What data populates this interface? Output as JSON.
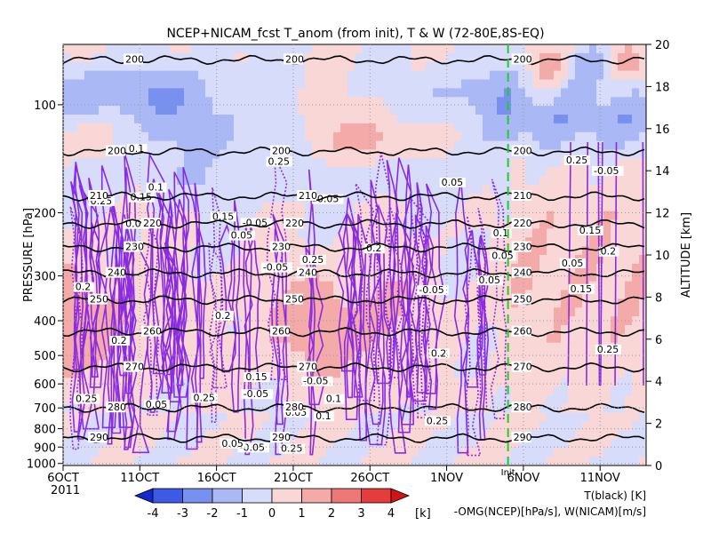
{
  "chart_data": {
    "type": "heatmap",
    "title": "NCEP+NICAM_fcst T_anom (from init), T & W   (72-80E,8S-EQ)",
    "ylabel_left": "PRESSURE [hPa]",
    "ylabel_right": "ALTITUDE [km]",
    "year_label": "2011",
    "x_ticks": [
      "6OCT",
      "11OCT",
      "16OCT",
      "21OCT",
      "26OCT",
      "1NOV",
      "6NOV",
      "11NOV"
    ],
    "x_range": [
      "2011-10-06",
      "2011-11-13"
    ],
    "init_date": "2011-11-04",
    "init_label": "Init",
    "pressure_ticks": [
      100,
      200,
      300,
      400,
      500,
      600,
      700,
      800,
      900,
      1000
    ],
    "pressure_tick_labels": [
      "100",
      "200",
      "300",
      "400",
      "500",
      "600",
      "700",
      "800",
      "900",
      "1000"
    ],
    "altitude_ticks": [
      0,
      2,
      4,
      6,
      8,
      10,
      12,
      14,
      16,
      18,
      20
    ],
    "altitude_tick_labels": [
      "0",
      "2",
      "4",
      "6",
      "8",
      "10",
      "12",
      "14",
      "16",
      "18",
      "20"
    ],
    "temperature_contours_K": [
      {
        "level": 290,
        "pressure_hPa": 850,
        "label": "290"
      },
      {
        "level": 280,
        "pressure_hPa": 700,
        "label": "280"
      },
      {
        "level": 270,
        "pressure_hPa": 540,
        "label": "270"
      },
      {
        "level": 260,
        "pressure_hPa": 430,
        "label": "260"
      },
      {
        "level": 250,
        "pressure_hPa": 350,
        "label": "250"
      },
      {
        "level": 240,
        "pressure_hPa": 295,
        "label": "240"
      },
      {
        "level": 230,
        "pressure_hPa": 250,
        "label": "230"
      },
      {
        "level": 220,
        "pressure_hPa": 215,
        "label": "220"
      },
      {
        "level": 210,
        "pressure_hPa": 180,
        "label": "210"
      },
      {
        "level": 200,
        "pressure_hPa": 135,
        "label": "200"
      },
      {
        "level": 200,
        "pressure_hPa": 75,
        "label": "200"
      }
    ],
    "w_labels": [
      "0.05",
      "0.1",
      "0.15",
      "0.2",
      "0.25",
      "-0.05"
    ],
    "colorbar": {
      "ticks": [
        "-4",
        "-3",
        "-2",
        "-1",
        "0",
        "1",
        "2",
        "3",
        "4"
      ],
      "unit": "[k]",
      "colors": [
        "#1428d2",
        "#3c5ae6",
        "#7890f0",
        "#aab9f5",
        "#d7dcfa",
        "#fad7d7",
        "#f5aaaa",
        "#ee7878",
        "#e63c3c",
        "#d21414"
      ]
    },
    "legend_T": "T(black) [K]",
    "legend_W": "-OMG(NCEP)[hPa/s], W(NICAM)[m/s]",
    "colors": {
      "T_contour": "#000000",
      "W_contour": "#8a2be2",
      "init_line": "#22cc22"
    }
  }
}
